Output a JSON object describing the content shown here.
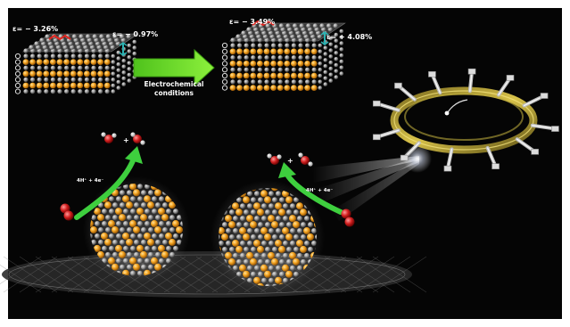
{
  "colors": {
    "background": "#050505",
    "frame": "#ffffff",
    "arrow_green": "#6cdc2c",
    "reaction_arrow_green": "#3ecf3e",
    "nanoparticle_orange": "#f5a623",
    "lattice_grey": "#9a9a9a",
    "oxygen_red": "#d21f1f",
    "strain_red": "#e0261f",
    "strain_teal": "#2bb3b3"
  },
  "icons": {
    "left_crystal_block": "layered-crystal-block-icon",
    "right_crystal_block": "layered-crystal-block-icon",
    "synchrotron": "synchrotron-ring-icon",
    "xray_beam": "xray-beam-icon",
    "oxygen_molecule": "oxygen-molecule-icon"
  },
  "labels": {
    "left_block_top_strain": "ε= − 3.26%",
    "left_block_side_strain": "ε= − 0.97%",
    "right_block_top_strain": "ε= − 3.49%",
    "right_block_side_strain": "ε= + 4.08%",
    "arrow_line1": "Electrochemical",
    "arrow_line2": "conditions",
    "left_reaction": "4H⁺ + 4e⁻",
    "right_reaction": "4H⁺ + 4e⁻",
    "product_plus_left": "+",
    "product_plus_right": "+"
  }
}
